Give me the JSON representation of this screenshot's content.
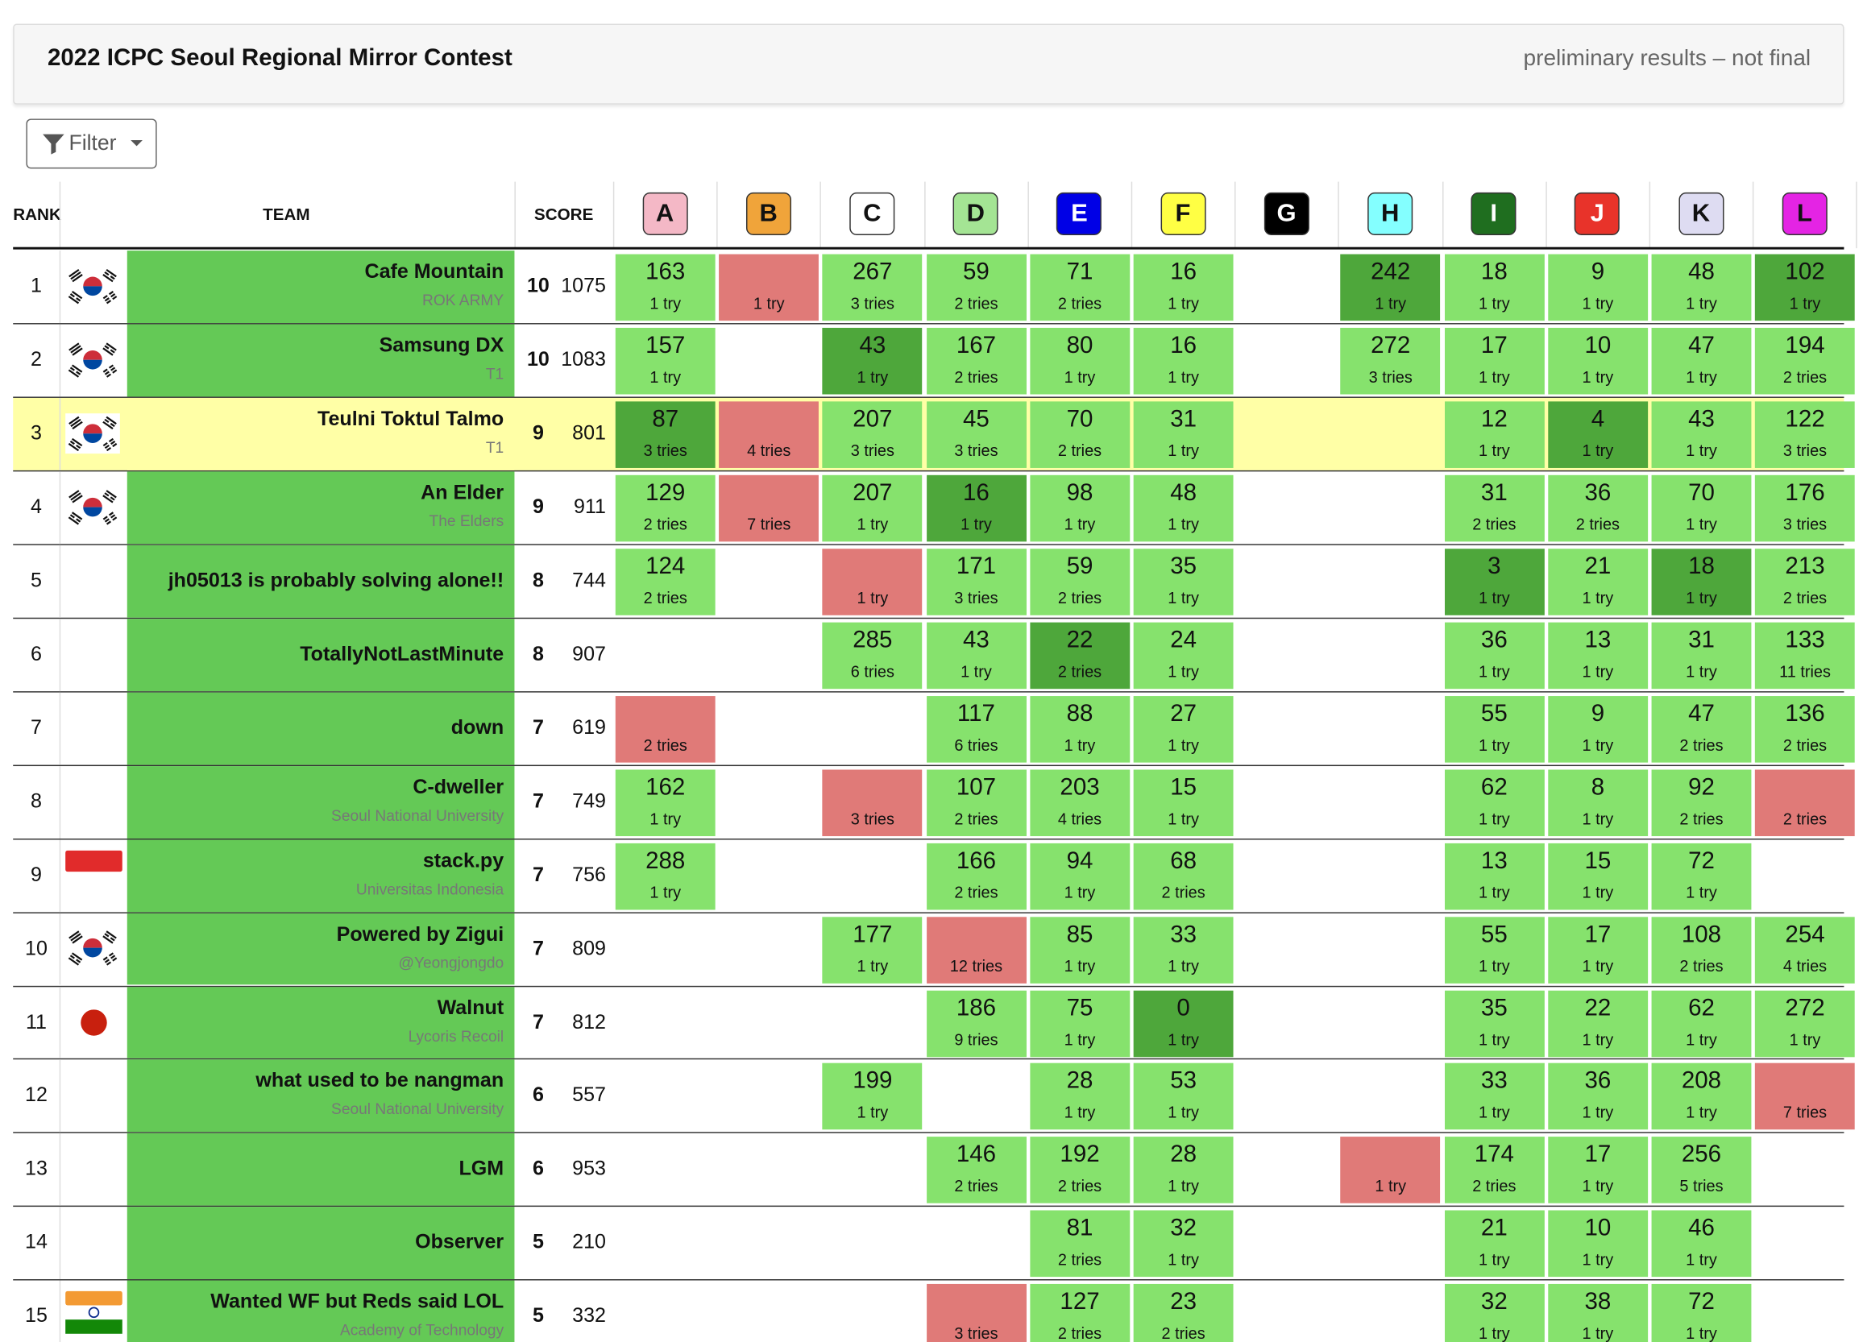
{
  "header": {
    "title": "2022 ICPC Seoul Regional Mirror Contest",
    "subtitle": "preliminary results – not final"
  },
  "filter": {
    "label": "Filter"
  },
  "table": {
    "columns": {
      "rank": "RANK",
      "team": "TEAM",
      "score": "SCORE"
    },
    "problems": [
      {
        "label": "A",
        "color": "#f4b8c6"
      },
      {
        "label": "B",
        "color": "#f0a43a"
      },
      {
        "label": "C",
        "color": "#ffffff"
      },
      {
        "label": "D",
        "color": "#a4e494"
      },
      {
        "label": "E",
        "color": "#0000e6"
      },
      {
        "label": "F",
        "color": "#ffff44"
      },
      {
        "label": "G",
        "color": "#000000"
      },
      {
        "label": "H",
        "color": "#84ffff"
      },
      {
        "label": "I",
        "color": "#1f6e1f"
      },
      {
        "label": "J",
        "color": "#e8332a"
      },
      {
        "label": "K",
        "color": "#dedcf2"
      },
      {
        "label": "L",
        "color": "#e424e4"
      }
    ],
    "rows": [
      {
        "rank": 1,
        "team": "Cafe Mountain",
        "affiliation": "ROK ARMY",
        "solved": 10,
        "penalty": 1075,
        "cells": [
          {
            "time": 163,
            "tries": "1 try",
            "status": "solved"
          },
          {
            "tries": "1 try",
            "status": "failed"
          },
          {
            "time": 267,
            "tries": "3 tries",
            "status": "solved"
          },
          {
            "time": 59,
            "tries": "2 tries",
            "status": "solved"
          },
          {
            "time": 71,
            "tries": "2 tries",
            "status": "solved"
          },
          {
            "time": 16,
            "tries": "1 try",
            "status": "solved"
          },
          null,
          {
            "time": 242,
            "tries": "1 try",
            "status": "first"
          },
          {
            "time": 18,
            "tries": "1 try",
            "status": "solved"
          },
          {
            "time": 9,
            "tries": "1 try",
            "status": "solved"
          },
          {
            "time": 48,
            "tries": "1 try",
            "status": "solved"
          },
          {
            "time": 102,
            "tries": "1 try",
            "status": "first"
          }
        ]
      },
      {
        "rank": 2,
        "team": "Samsung DX",
        "affiliation": "T1",
        "solved": 10,
        "penalty": 1083,
        "cells": [
          {
            "time": 157,
            "tries": "1 try",
            "status": "solved"
          },
          null,
          {
            "time": 43,
            "tries": "1 try",
            "status": "first"
          },
          {
            "time": 167,
            "tries": "2 tries",
            "status": "solved"
          },
          {
            "time": 80,
            "tries": "1 try",
            "status": "solved"
          },
          {
            "time": 16,
            "tries": "1 try",
            "status": "solved"
          },
          null,
          {
            "time": 272,
            "tries": "3 tries",
            "status": "solved"
          },
          {
            "time": 17,
            "tries": "1 try",
            "status": "solved"
          },
          {
            "time": 10,
            "tries": "1 try",
            "status": "solved"
          },
          {
            "time": 47,
            "tries": "1 try",
            "status": "solved"
          },
          {
            "time": 194,
            "tries": "2 tries",
            "status": "solved"
          }
        ]
      },
      {
        "rank": 3,
        "team": "Teulni Toktul Talmo",
        "affiliation": "T1",
        "solved": 9,
        "penalty": 801,
        "highlighted": true,
        "cells": [
          {
            "time": 87,
            "tries": "3 tries",
            "status": "first"
          },
          {
            "tries": "4 tries",
            "status": "failed"
          },
          {
            "time": 207,
            "tries": "3 tries",
            "status": "solved"
          },
          {
            "time": 45,
            "tries": "3 tries",
            "status": "solved"
          },
          {
            "time": 70,
            "tries": "2 tries",
            "status": "solved"
          },
          {
            "time": 31,
            "tries": "1 try",
            "status": "solved"
          },
          null,
          null,
          {
            "time": 12,
            "tries": "1 try",
            "status": "solved"
          },
          {
            "time": 4,
            "tries": "1 try",
            "status": "first"
          },
          {
            "time": 43,
            "tries": "1 try",
            "status": "solved"
          },
          {
            "time": 122,
            "tries": "3 tries",
            "status": "solved"
          }
        ]
      },
      {
        "rank": 4,
        "team": "An Elder",
        "affiliation": "The Elders",
        "solved": 9,
        "penalty": 911,
        "cells": [
          {
            "time": 129,
            "tries": "2 tries",
            "status": "solved"
          },
          {
            "tries": "7 tries",
            "status": "failed"
          },
          {
            "time": 207,
            "tries": "1 try",
            "status": "solved"
          },
          {
            "time": 16,
            "tries": "1 try",
            "status": "first"
          },
          {
            "time": 98,
            "tries": "1 try",
            "status": "solved"
          },
          {
            "time": 48,
            "tries": "1 try",
            "status": "solved"
          },
          null,
          null,
          {
            "time": 31,
            "tries": "2 tries",
            "status": "solved"
          },
          {
            "time": 36,
            "tries": "2 tries",
            "status": "solved"
          },
          {
            "time": 70,
            "tries": "1 try",
            "status": "solved"
          },
          {
            "time": 176,
            "tries": "3 tries",
            "status": "solved"
          }
        ]
      },
      {
        "rank": 5,
        "team": "jh05013 is probably solving alone!!",
        "solved": 8,
        "penalty": 744,
        "cells": [
          {
            "time": 124,
            "tries": "2 tries",
            "status": "solved"
          },
          null,
          {
            "tries": "1 try",
            "status": "failed"
          },
          {
            "time": 171,
            "tries": "3 tries",
            "status": "solved"
          },
          {
            "time": 59,
            "tries": "2 tries",
            "status": "solved"
          },
          {
            "time": 35,
            "tries": "1 try",
            "status": "solved"
          },
          null,
          null,
          {
            "time": 3,
            "tries": "1 try",
            "status": "first"
          },
          {
            "time": 21,
            "tries": "1 try",
            "status": "solved"
          },
          {
            "time": 18,
            "tries": "1 try",
            "status": "first"
          },
          {
            "time": 213,
            "tries": "2 tries",
            "status": "solved"
          }
        ]
      },
      {
        "rank": 6,
        "team": "TotallyNotLastMinute",
        "solved": 8,
        "penalty": 907,
        "cells": [
          null,
          null,
          {
            "time": 285,
            "tries": "6 tries",
            "status": "solved"
          },
          {
            "time": 43,
            "tries": "1 try",
            "status": "solved"
          },
          {
            "time": 22,
            "tries": "2 tries",
            "status": "first"
          },
          {
            "time": 24,
            "tries": "1 try",
            "status": "solved"
          },
          null,
          null,
          {
            "time": 36,
            "tries": "1 try",
            "status": "solved"
          },
          {
            "time": 13,
            "tries": "1 try",
            "status": "solved"
          },
          {
            "time": 31,
            "tries": "1 try",
            "status": "solved"
          },
          {
            "time": 133,
            "tries": "11 tries",
            "status": "solved"
          }
        ]
      },
      {
        "rank": 7,
        "team": "down",
        "solved": 7,
        "penalty": 619,
        "cells": [
          {
            "tries": "2 tries",
            "status": "failed"
          },
          null,
          null,
          {
            "time": 117,
            "tries": "6 tries",
            "status": "solved"
          },
          {
            "time": 88,
            "tries": "1 try",
            "status": "solved"
          },
          {
            "time": 27,
            "tries": "1 try",
            "status": "solved"
          },
          null,
          null,
          {
            "time": 55,
            "tries": "1 try",
            "status": "solved"
          },
          {
            "time": 9,
            "tries": "1 try",
            "status": "solved"
          },
          {
            "time": 47,
            "tries": "2 tries",
            "status": "solved"
          },
          {
            "time": 136,
            "tries": "2 tries",
            "status": "solved"
          }
        ]
      },
      {
        "rank": 8,
        "team": "C-dweller",
        "affiliation": "Seoul National University",
        "solved": 7,
        "penalty": 749,
        "cells": [
          {
            "time": 162,
            "tries": "1 try",
            "status": "solved"
          },
          null,
          {
            "tries": "3 tries",
            "status": "failed"
          },
          {
            "time": 107,
            "tries": "2 tries",
            "status": "solved"
          },
          {
            "time": 203,
            "tries": "4 tries",
            "status": "solved"
          },
          {
            "time": 15,
            "tries": "1 try",
            "status": "solved"
          },
          null,
          null,
          {
            "time": 62,
            "tries": "1 try",
            "status": "solved"
          },
          {
            "time": 8,
            "tries": "1 try",
            "status": "solved"
          },
          {
            "time": 92,
            "tries": "2 tries",
            "status": "solved"
          },
          {
            "tries": "2 tries",
            "status": "failed"
          }
        ]
      },
      {
        "rank": 9,
        "team": "stack.py",
        "affiliation": "Universitas Indonesia",
        "solved": 7,
        "penalty": 756,
        "cells": [
          {
            "time": 288,
            "tries": "1 try",
            "status": "solved"
          },
          null,
          null,
          {
            "time": 166,
            "tries": "2 tries",
            "status": "solved"
          },
          {
            "time": 94,
            "tries": "1 try",
            "status": "solved"
          },
          {
            "time": 68,
            "tries": "2 tries",
            "status": "solved"
          },
          null,
          null,
          {
            "time": 13,
            "tries": "1 try",
            "status": "solved"
          },
          {
            "time": 15,
            "tries": "1 try",
            "status": "solved"
          },
          {
            "time": 72,
            "tries": "1 try",
            "status": "solved"
          },
          null
        ]
      },
      {
        "rank": 10,
        "team": "Powered by Zigui",
        "affiliation": "@Yeongjongdo",
        "solved": 7,
        "penalty": 809,
        "cells": [
          null,
          null,
          {
            "time": 177,
            "tries": "1 try",
            "status": "solved"
          },
          {
            "tries": "12 tries",
            "status": "failed"
          },
          {
            "time": 85,
            "tries": "1 try",
            "status": "solved"
          },
          {
            "time": 33,
            "tries": "1 try",
            "status": "solved"
          },
          null,
          null,
          {
            "time": 55,
            "tries": "1 try",
            "status": "solved"
          },
          {
            "time": 17,
            "tries": "1 try",
            "status": "solved"
          },
          {
            "time": 108,
            "tries": "2 tries",
            "status": "solved"
          },
          {
            "time": 254,
            "tries": "4 tries",
            "status": "solved"
          }
        ]
      },
      {
        "rank": 11,
        "team": "Walnut",
        "affiliation": "Lycoris Recoil",
        "solved": 7,
        "penalty": 812,
        "cells": [
          null,
          null,
          null,
          {
            "time": 186,
            "tries": "9 tries",
            "status": "solved"
          },
          {
            "time": 75,
            "tries": "1 try",
            "status": "solved"
          },
          {
            "time": 0,
            "tries": "1 try",
            "status": "first"
          },
          null,
          null,
          {
            "time": 35,
            "tries": "1 try",
            "status": "solved"
          },
          {
            "time": 22,
            "tries": "1 try",
            "status": "solved"
          },
          {
            "time": 62,
            "tries": "1 try",
            "status": "solved"
          },
          {
            "time": 272,
            "tries": "1 try",
            "status": "solved"
          }
        ]
      },
      {
        "rank": 12,
        "team": "what used to be nangman",
        "affiliation": "Seoul National University",
        "solved": 6,
        "penalty": 557,
        "cells": [
          null,
          null,
          {
            "time": 199,
            "tries": "1 try",
            "status": "solved"
          },
          null,
          {
            "time": 28,
            "tries": "1 try",
            "status": "solved"
          },
          {
            "time": 53,
            "tries": "1 try",
            "status": "solved"
          },
          null,
          null,
          {
            "time": 33,
            "tries": "1 try",
            "status": "solved"
          },
          {
            "time": 36,
            "tries": "1 try",
            "status": "solved"
          },
          {
            "time": 208,
            "tries": "1 try",
            "status": "solved"
          },
          {
            "tries": "7 tries",
            "status": "failed"
          }
        ]
      },
      {
        "rank": 13,
        "team": "LGM",
        "solved": 6,
        "penalty": 953,
        "cells": [
          null,
          null,
          null,
          {
            "time": 146,
            "tries": "2 tries",
            "status": "solved"
          },
          {
            "time": 192,
            "tries": "2 tries",
            "status": "solved"
          },
          {
            "time": 28,
            "tries": "1 try",
            "status": "solved"
          },
          null,
          {
            "tries": "1 try",
            "status": "failed"
          },
          {
            "time": 174,
            "tries": "2 tries",
            "status": "solved"
          },
          {
            "time": 17,
            "tries": "1 try",
            "status": "solved"
          },
          {
            "time": 256,
            "tries": "5 tries",
            "status": "solved"
          },
          null
        ]
      },
      {
        "rank": 14,
        "team": "Observer",
        "solved": 5,
        "penalty": 210,
        "cells": [
          null,
          null,
          null,
          null,
          {
            "time": 81,
            "tries": "2 tries",
            "status": "solved"
          },
          {
            "time": 32,
            "tries": "1 try",
            "status": "solved"
          },
          null,
          null,
          {
            "time": 21,
            "tries": "1 try",
            "status": "solved"
          },
          {
            "time": 10,
            "tries": "1 try",
            "status": "solved"
          },
          {
            "time": 46,
            "tries": "1 try",
            "status": "solved"
          },
          null
        ]
      },
      {
        "rank": 15,
        "team": "Wanted WF but Reds said LOL",
        "affiliation": "Academy of Technology",
        "solved": 5,
        "penalty": 332,
        "cells": [
          null,
          null,
          null,
          {
            "tries": "3 tries",
            "status": "failed"
          },
          {
            "time": 127,
            "tries": "2 tries",
            "status": "solved"
          },
          {
            "time": 23,
            "tries": "2 tries",
            "status": "solved"
          },
          null,
          null,
          {
            "time": 32,
            "tries": "1 try",
            "status": "solved"
          },
          {
            "time": 38,
            "tries": "1 try",
            "status": "solved"
          },
          {
            "time": 72,
            "tries": "1 try",
            "status": "solved"
          },
          null
        ]
      }
    ]
  }
}
